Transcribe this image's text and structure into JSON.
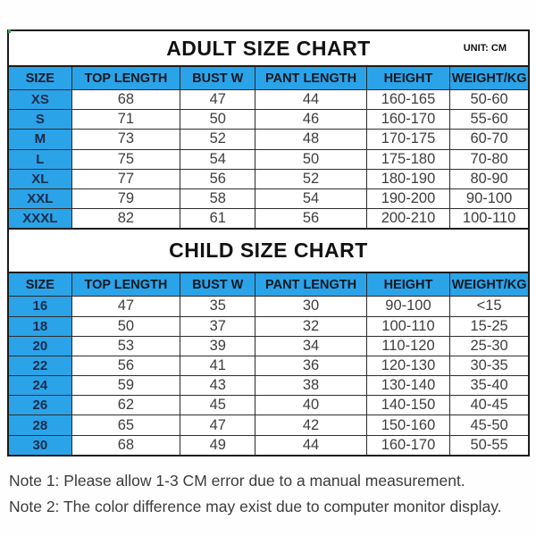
{
  "colors": {
    "accent_blue": "#2BA3E8",
    "frame_border": "#1b1b1b",
    "grid_line": "#2a2a2a",
    "data_text": "#3e3e3e",
    "size_text": "#1b2b4a",
    "note_text": "#3c3c3c",
    "background": "#ffffff"
  },
  "chart_data": [
    {
      "type": "table",
      "title": "ADULT SIZE CHART",
      "unit": "UNIT: CM",
      "columns": [
        "SIZE",
        "TOP LENGTH",
        "BUST W",
        "PANT LENGTH",
        "HEIGHT",
        "WEIGHT/KG"
      ],
      "rows": [
        [
          "XS",
          "68",
          "47",
          "44",
          "160-165",
          "50-60"
        ],
        [
          "S",
          "71",
          "50",
          "46",
          "160-170",
          "55-60"
        ],
        [
          "M",
          "73",
          "52",
          "48",
          "170-175",
          "60-70"
        ],
        [
          "L",
          "75",
          "54",
          "50",
          "175-180",
          "70-80"
        ],
        [
          "XL",
          "77",
          "56",
          "52",
          "180-190",
          "80-90"
        ],
        [
          "XXL",
          "79",
          "58",
          "54",
          "190-200",
          "90-100"
        ],
        [
          "XXXL",
          "82",
          "61",
          "56",
          "200-210",
          "100-110"
        ]
      ]
    },
    {
      "type": "table",
      "title": "CHILD SIZE CHART",
      "columns": [
        "SIZE",
        "TOP LENGTH",
        "BUST W",
        "PANT LENGTH",
        "HEIGHT",
        "WEIGHT/KG"
      ],
      "rows": [
        [
          "16",
          "47",
          "35",
          "30",
          "90-100",
          "<15"
        ],
        [
          "18",
          "50",
          "37",
          "32",
          "100-110",
          "15-25"
        ],
        [
          "20",
          "53",
          "39",
          "34",
          "110-120",
          "25-30"
        ],
        [
          "22",
          "56",
          "41",
          "36",
          "120-130",
          "30-35"
        ],
        [
          "24",
          "59",
          "43",
          "38",
          "130-140",
          "35-40"
        ],
        [
          "26",
          "62",
          "45",
          "40",
          "140-150",
          "40-45"
        ],
        [
          "28",
          "65",
          "47",
          "42",
          "150-160",
          "45-50"
        ],
        [
          "30",
          "68",
          "49",
          "44",
          "160-170",
          "50-55"
        ]
      ]
    }
  ],
  "notes": {
    "note1": "Note 1: Please allow 1-3 CM error due to a manual measurement.",
    "note2": "Note 2: The color difference may exist due to computer monitor display."
  }
}
